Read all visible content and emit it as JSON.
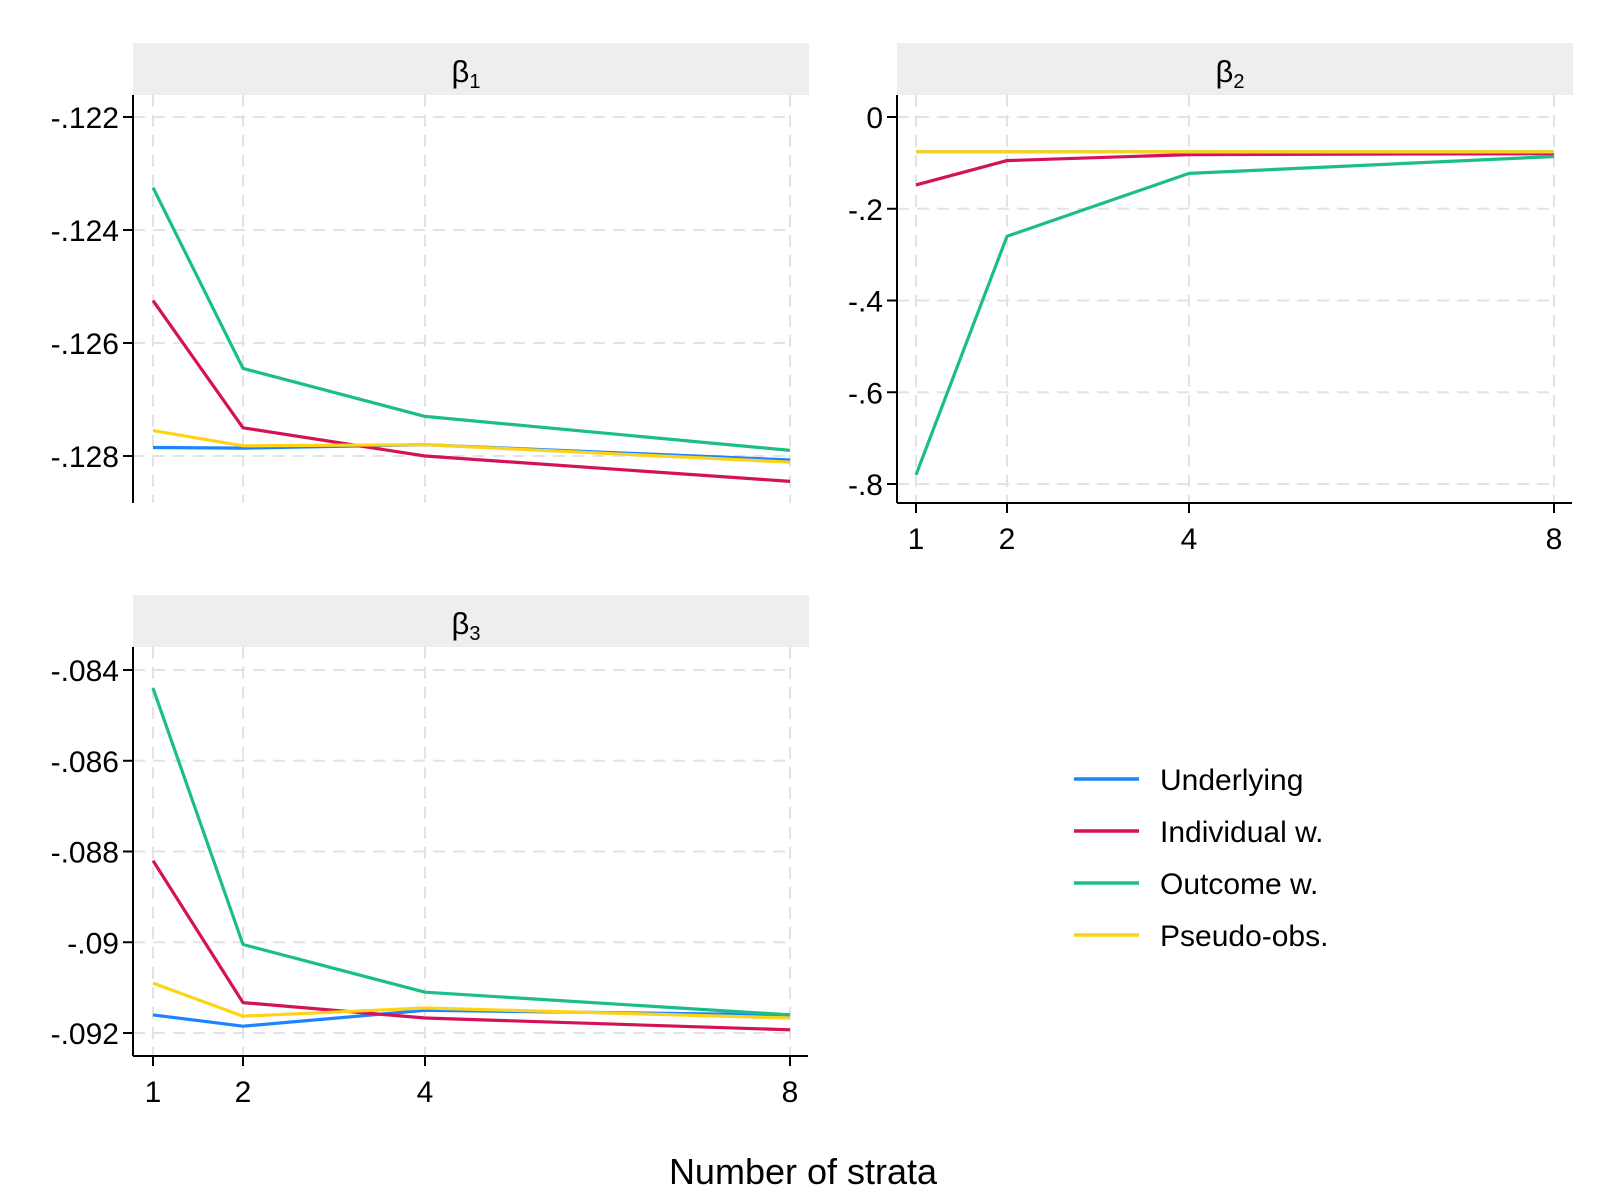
{
  "figure": {
    "xlabel": "Number of strata"
  },
  "legend": [
    {
      "label": "Underlying",
      "color": "#1a85ff"
    },
    {
      "label": "Individual w.",
      "color": "#d41159"
    },
    {
      "label": "Outcome w.",
      "color": "#1bbe86"
    },
    {
      "label": "Pseudo-obs.",
      "color": "#ffd21a"
    }
  ],
  "chart_data": [
    {
      "type": "line",
      "panel": "beta1",
      "title_base": "β",
      "title_sub": "1",
      "x": [
        1,
        2,
        4,
        8
      ],
      "xticks": [
        "1",
        "2",
        "4",
        "8"
      ],
      "show_xticks": false,
      "ylim": [
        -0.1288,
        -0.1216
      ],
      "yticks": [
        -0.122,
        -0.124,
        -0.126,
        -0.128
      ],
      "ytick_labels": [
        "-.122",
        "-.124",
        "-.126",
        "-.128"
      ],
      "series": [
        {
          "name": "Underlying",
          "values": [
            -0.12785,
            -0.12786,
            -0.1278,
            -0.12807
          ]
        },
        {
          "name": "Individual w.",
          "values": [
            -0.12525,
            -0.1275,
            -0.128,
            -0.12845
          ]
        },
        {
          "name": "Outcome w.",
          "values": [
            -0.12325,
            -0.12645,
            -0.1273,
            -0.1279
          ]
        },
        {
          "name": "Pseudo-obs.",
          "values": [
            -0.12755,
            -0.12782,
            -0.1278,
            -0.12811
          ]
        }
      ]
    },
    {
      "type": "line",
      "panel": "beta2",
      "title_base": "β",
      "title_sub": "2",
      "x": [
        1,
        2,
        4,
        8
      ],
      "xticks": [
        "1",
        "2",
        "4",
        "8"
      ],
      "show_xticks": true,
      "ylim": [
        -0.85,
        0.05
      ],
      "yticks": [
        0,
        -0.2,
        -0.4,
        -0.6,
        -0.8
      ],
      "ytick_labels": [
        "0",
        "-.2",
        "-.4",
        "-.6",
        "-.8"
      ],
      "series": [
        {
          "name": "Underlying",
          "values": [
            -0.076,
            -0.076,
            -0.076,
            -0.076
          ]
        },
        {
          "name": "Individual w.",
          "values": [
            -0.148,
            -0.095,
            -0.082,
            -0.08
          ]
        },
        {
          "name": "Outcome w.",
          "values": [
            -0.78,
            -0.26,
            -0.123,
            -0.086
          ]
        },
        {
          "name": "Pseudo-obs.",
          "values": [
            -0.076,
            -0.076,
            -0.076,
            -0.076
          ]
        }
      ]
    },
    {
      "type": "line",
      "panel": "beta3",
      "title_base": "β",
      "title_sub": "3",
      "x": [
        1,
        2,
        4,
        8
      ],
      "xticks": [
        "1",
        "2",
        "4",
        "8"
      ],
      "show_xticks": true,
      "ylim": [
        -0.0924,
        -0.0836
      ],
      "yticks": [
        -0.084,
        -0.086,
        -0.088,
        -0.09,
        -0.092
      ],
      "ytick_labels": [
        "-.084",
        "-.086",
        "-.088",
        "-.09",
        "-.092"
      ],
      "series": [
        {
          "name": "Underlying",
          "values": [
            -0.0916,
            -0.09185,
            -0.0915,
            -0.0916
          ]
        },
        {
          "name": "Individual w.",
          "values": [
            -0.0882,
            -0.09133,
            -0.09167,
            -0.09193
          ]
        },
        {
          "name": "Outcome w.",
          "values": [
            -0.0844,
            -0.09005,
            -0.0911,
            -0.0916
          ]
        },
        {
          "name": "Pseudo-obs.",
          "values": [
            -0.0909,
            -0.09163,
            -0.09145,
            -0.09167
          ]
        }
      ]
    }
  ]
}
